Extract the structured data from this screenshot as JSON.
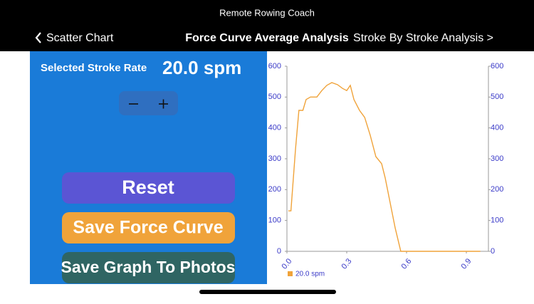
{
  "header": {
    "app_title": "Remote Rowing Coach",
    "back": "Scatter Chart",
    "title": "Force Curve Average Analysis",
    "forward": "Stroke By Stroke Analysis >"
  },
  "panel": {
    "stroke_rate_label": "Selected Stroke Rate",
    "stroke_rate_value": "20.0 spm",
    "buttons": [
      "Reset",
      "Save Force Curve",
      "Save Graph To Photos"
    ]
  },
  "chart_data": {
    "type": "line",
    "x": [
      0.007,
      0.02,
      0.043,
      0.06,
      0.08,
      0.096,
      0.118,
      0.15,
      0.175,
      0.2,
      0.225,
      0.254,
      0.279,
      0.3,
      0.318,
      0.336,
      0.364,
      0.39,
      0.418,
      0.446,
      0.475,
      0.493,
      0.518,
      0.543,
      0.571,
      0.65,
      0.75,
      0.85,
      0.97
    ],
    "series": [
      {
        "name": "20.0 spm",
        "color": "#f0a33a",
        "values": [
          131,
          131,
          330,
          457,
          457,
          492,
          500,
          500,
          521,
          538,
          547,
          540,
          528,
          521,
          538,
          492,
          457,
          434,
          376,
          307,
          284,
          238,
          157,
          76,
          0,
          0,
          0,
          0,
          0
        ]
      }
    ],
    "xlim": [
      0,
      1.0
    ],
    "xticks": [
      {
        "value": 0,
        "label": "0.0"
      },
      0.3,
      0.6,
      0.9
    ],
    "ylim": [
      0,
      600
    ],
    "yticks": [
      0,
      100,
      200,
      300,
      400,
      500,
      600
    ],
    "y2lim": [
      0,
      600
    ],
    "y2ticks": [
      0,
      100,
      200,
      300,
      400,
      500,
      600
    ]
  }
}
